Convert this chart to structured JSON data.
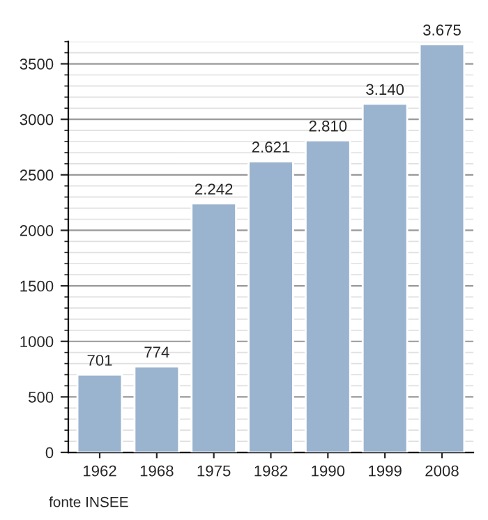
{
  "chart_data": {
    "type": "bar",
    "categories": [
      "1962",
      "1968",
      "1975",
      "1982",
      "1990",
      "1999",
      "2008"
    ],
    "values": [
      701,
      774,
      2242,
      2621,
      2810,
      3140,
      3675
    ],
    "value_labels": [
      "701",
      "774",
      "2.242",
      "2.621",
      "2.810",
      "3.140",
      "3.675"
    ],
    "color": "#9ab3cf",
    "ylim": [
      0,
      3700
    ],
    "yticks": [
      0,
      500,
      1000,
      1500,
      2000,
      2500,
      3000,
      3500
    ],
    "grid": "y",
    "annotations": [
      "fonte INSEE"
    ]
  }
}
